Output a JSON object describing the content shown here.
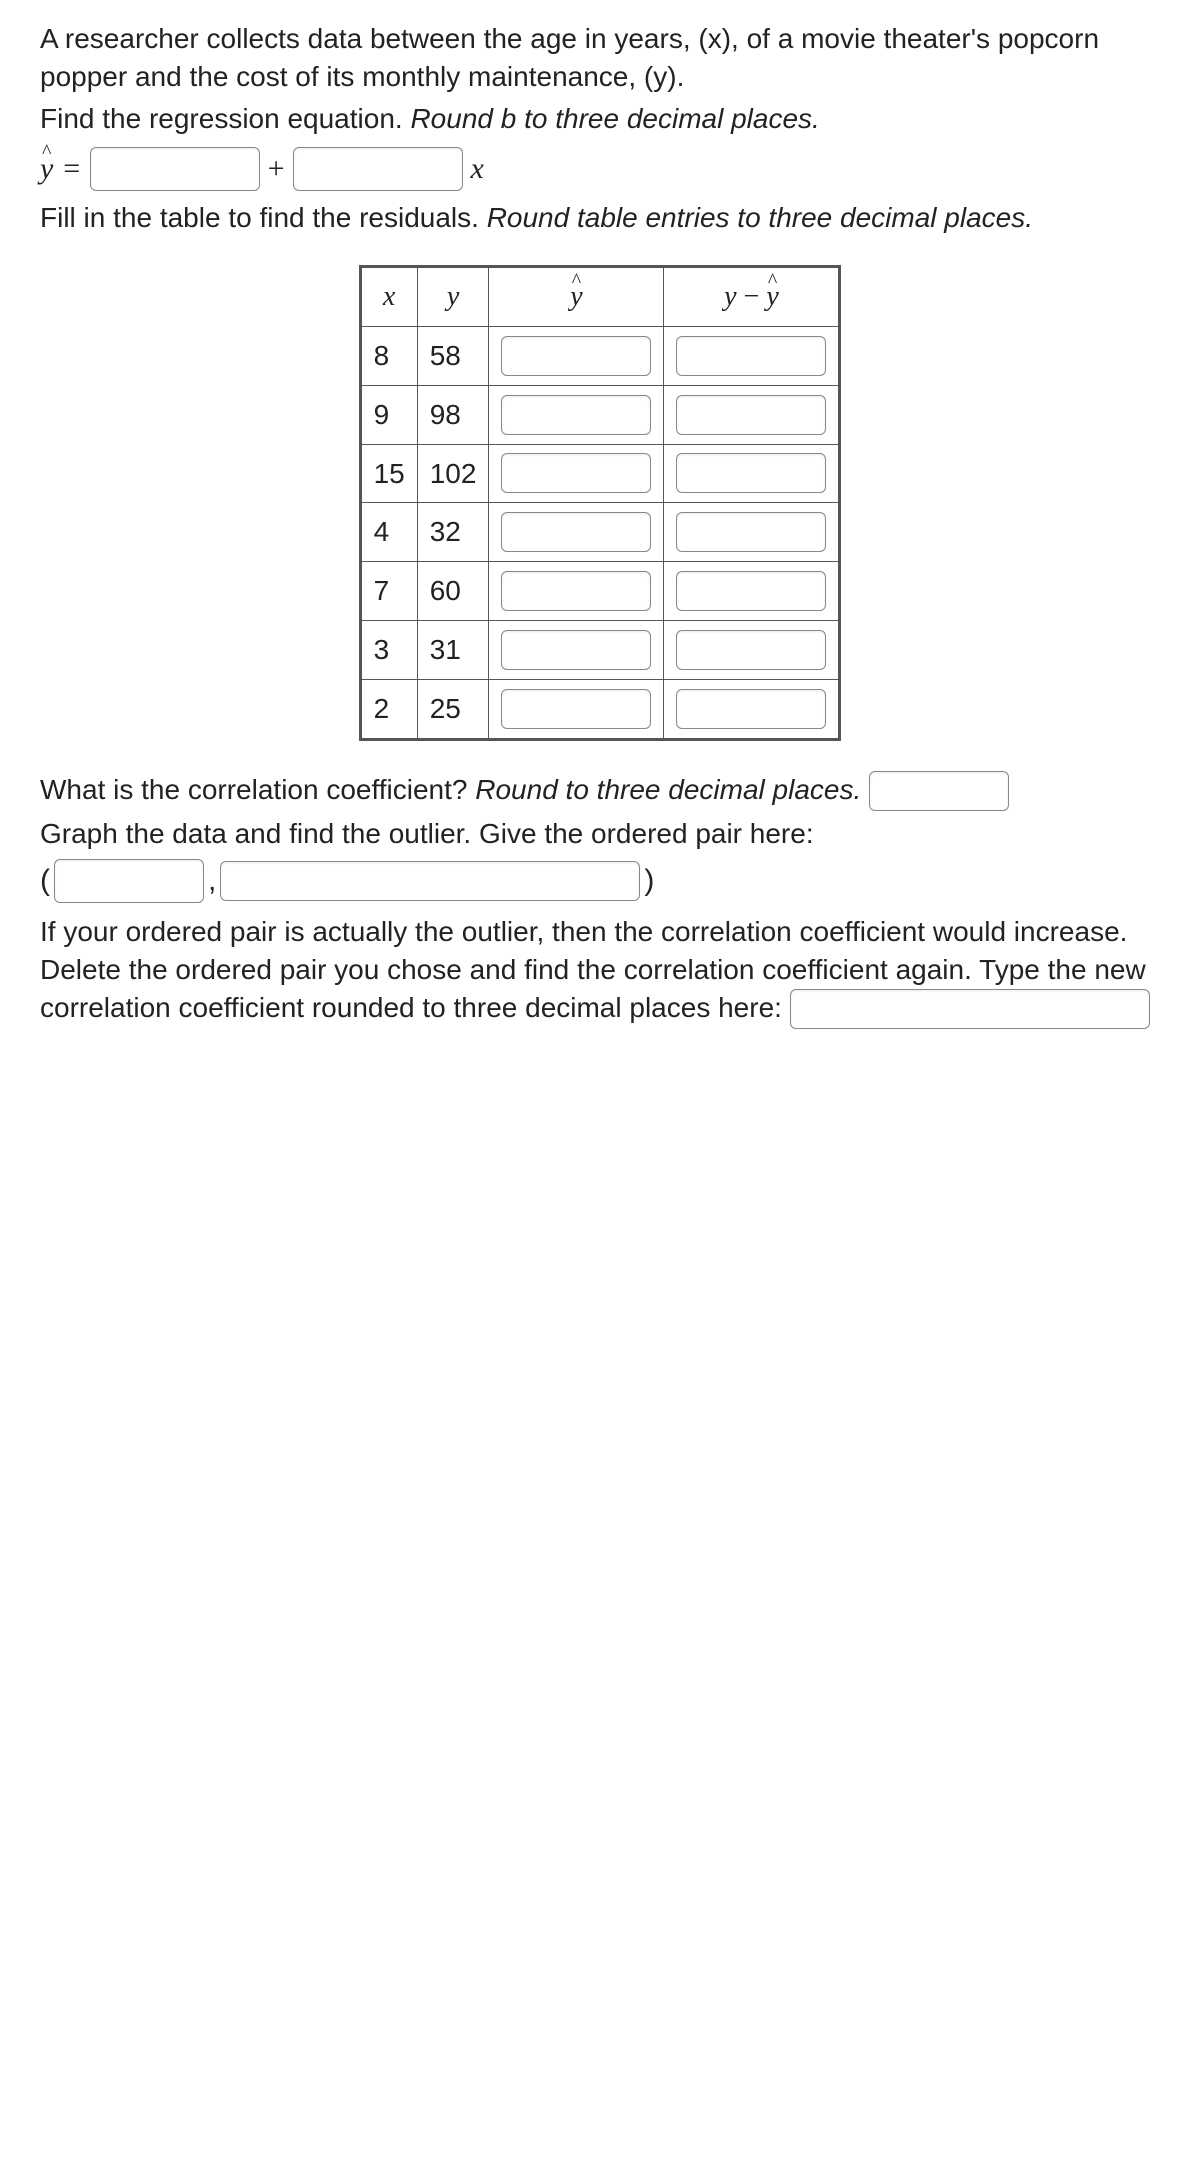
{
  "p1": "A researcher collects data between the age in years, (x), of a movie theater's popcorn popper and the cost of its monthly maintenance, (y).",
  "p2a": "Find the regression equation. ",
  "p2b": "Round b to three decimal places.",
  "eq": {
    "yhat_letter": "y",
    "equals": " = ",
    "plus": "+",
    "xvar": "x"
  },
  "p3a": "Fill in the table to find the residuals. ",
  "p3b": "Round table entries to three decimal places.",
  "table": {
    "headers": {
      "x": "x",
      "y": "y",
      "yhat": "y",
      "res_left": "y",
      "res_minus": " − ",
      "res_right": "y"
    },
    "rows": [
      {
        "x": "8",
        "y": "58"
      },
      {
        "x": "9",
        "y": "98"
      },
      {
        "x": "15",
        "y": "102"
      },
      {
        "x": "4",
        "y": "32"
      },
      {
        "x": "7",
        "y": "60"
      },
      {
        "x": "3",
        "y": "31"
      },
      {
        "x": "2",
        "y": "25"
      }
    ]
  },
  "q_corr_a": "What is the correlation coefficient? ",
  "q_corr_b": "Round to three decimal places.",
  "q_graph": "Graph the data and find the outlier. Give the ordered pair here:",
  "paren_open": "(",
  "comma": ",",
  "paren_close": ")",
  "q_delete": "If your ordered pair is actually the outlier, then the correlation coefficient would increase. Delete the ordered pair you chose and find the correlation coefficient again. Type the new correlation coefficient rounded to three decimal places here:",
  "hat_char": "^"
}
